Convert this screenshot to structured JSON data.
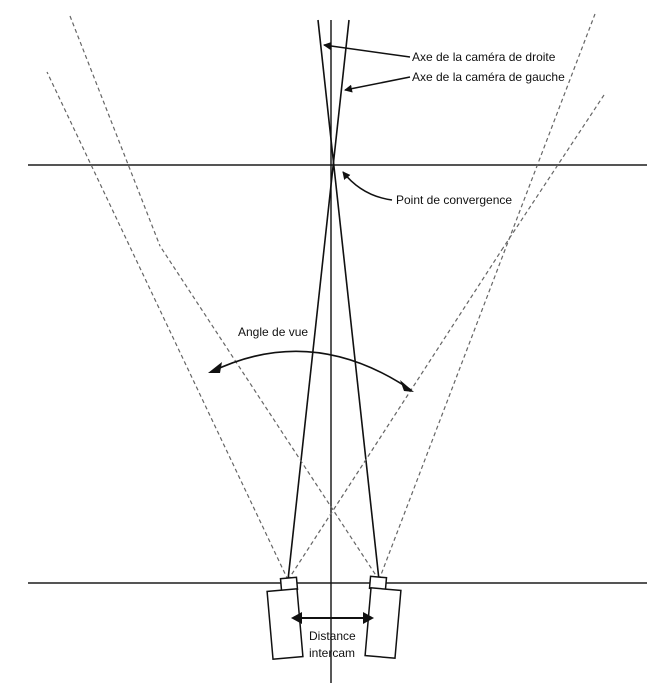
{
  "labels": {
    "right_camera_axis": "Axe de la caméra de droite",
    "left_camera_axis": "Axe de la caméra de gauche",
    "convergence_point": "Point de convergence",
    "field_of_view": "Angle de vue",
    "distance_line1": "Distance",
    "distance_line2": "intercam"
  }
}
